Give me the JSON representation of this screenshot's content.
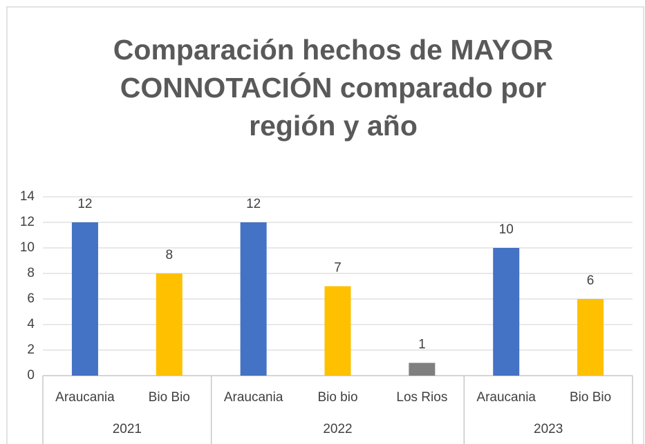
{
  "chart_data": {
    "type": "bar",
    "title_lines": [
      "Comparación hechos de MAYOR",
      "CONNOTACIÓN comparado por",
      "región y año"
    ],
    "groups": [
      {
        "name": "2021",
        "categories": [
          "Araucania",
          "Bio Bio"
        ],
        "values": [
          12,
          8
        ],
        "colors": [
          "#4472c4",
          "#ffc000"
        ]
      },
      {
        "name": "2022",
        "categories": [
          "Araucania",
          "Bio bio",
          "Los Rios"
        ],
        "values": [
          12,
          7,
          1
        ],
        "colors": [
          "#4472c4",
          "#ffc000",
          "#7f7f7f"
        ]
      },
      {
        "name": "2023",
        "categories": [
          "Araucania",
          "Bio Bio"
        ],
        "values": [
          10,
          6
        ],
        "colors": [
          "#4472c4",
          "#ffc000"
        ]
      }
    ],
    "ylim": [
      0,
      14
    ],
    "yticks": [
      0,
      2,
      4,
      6,
      8,
      10,
      12,
      14
    ],
    "grid": true,
    "data_labels": true
  }
}
